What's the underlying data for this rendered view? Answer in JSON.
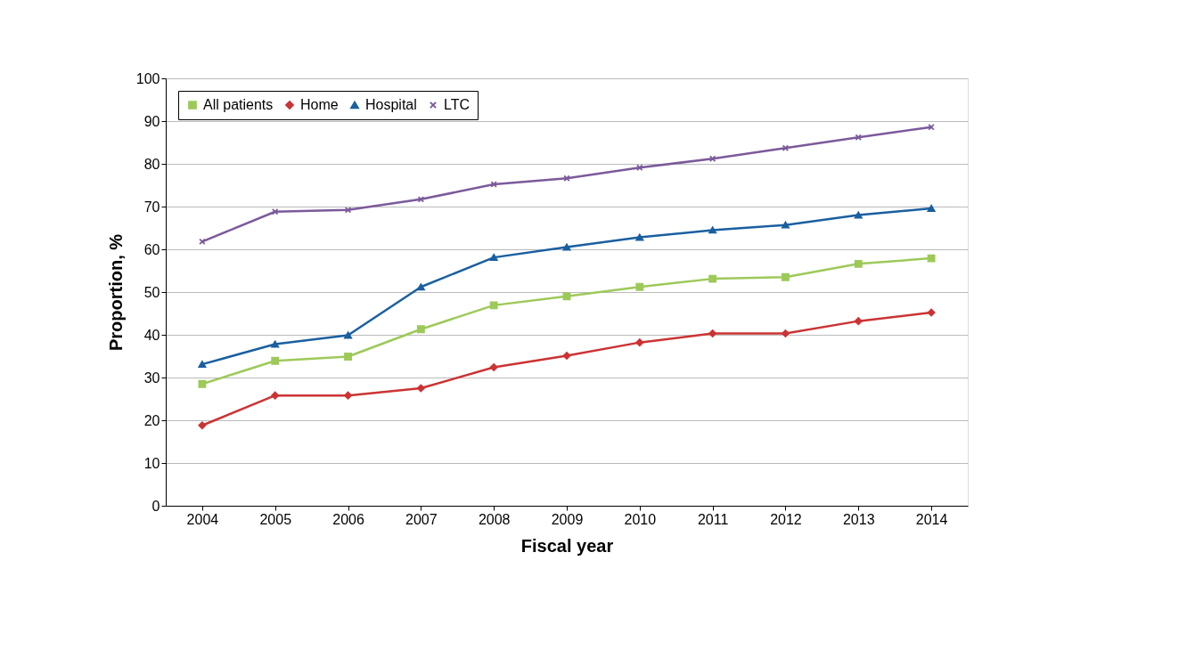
{
  "chart_data": {
    "type": "line",
    "xlabel": "Fiscal year",
    "ylabel": "Proportion, %",
    "categories": [
      "2004",
      "2005",
      "2006",
      "2007",
      "2008",
      "2009",
      "2010",
      "2011",
      "2012",
      "2013",
      "2014"
    ],
    "ylim": [
      0,
      100
    ],
    "yticks": [
      0,
      10,
      20,
      30,
      40,
      50,
      60,
      70,
      80,
      90,
      100
    ],
    "grid": "y",
    "legend": "top left",
    "line_style": "solid",
    "series": [
      {
        "name": "All patients",
        "color": "#9dc959",
        "marker": "square",
        "values": [
          28.5,
          33.9,
          34.9,
          41.3,
          46.9,
          49.0,
          51.2,
          53.1,
          53.5,
          56.6,
          57.9
        ]
      },
      {
        "name": "Home",
        "color": "#cc3333",
        "marker": "diamond",
        "values": [
          18.8,
          25.8,
          25.8,
          27.5,
          32.4,
          35.1,
          38.2,
          40.3,
          40.3,
          43.2,
          45.2
        ]
      },
      {
        "name": "Hospital",
        "color": "#1a5fa0",
        "marker": "triangle",
        "values": [
          33.1,
          37.8,
          39.9,
          51.2,
          58.1,
          60.5,
          62.8,
          64.5,
          65.7,
          68.0,
          69.6
        ]
      },
      {
        "name": "LTC",
        "color": "#7b5a9a",
        "marker": "cross",
        "values": [
          61.8,
          68.8,
          69.2,
          71.7,
          75.2,
          76.6,
          79.1,
          81.2,
          83.7,
          86.2,
          88.6
        ]
      }
    ]
  }
}
